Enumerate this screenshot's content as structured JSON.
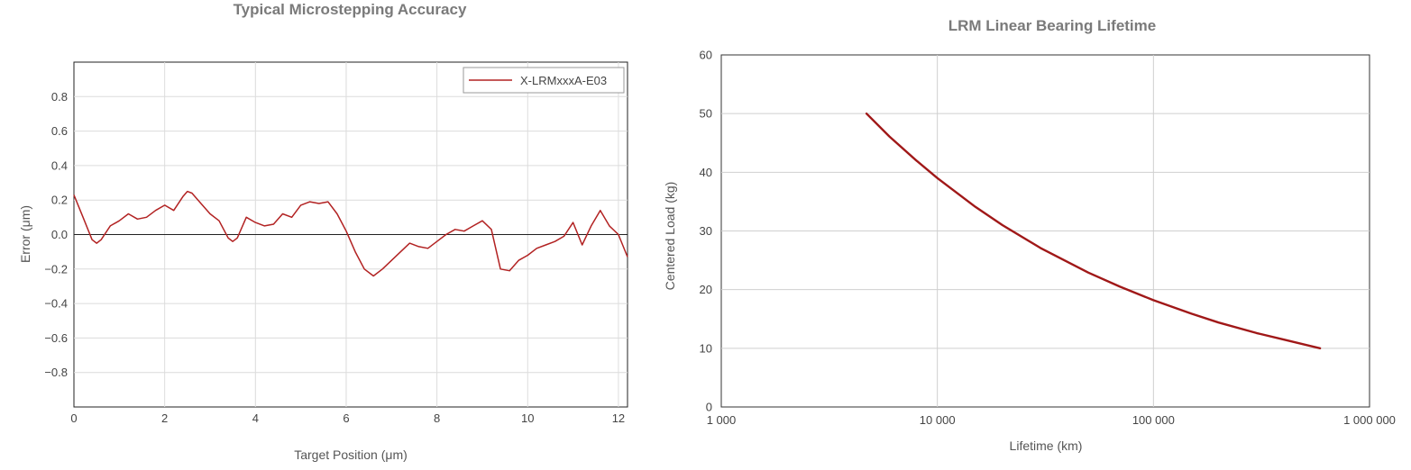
{
  "chart_data": [
    {
      "type": "line",
      "title": "Typical Microstepping Accuracy",
      "xlabel": "Target Position (μm)",
      "ylabel": "Error (μm)",
      "xlim": [
        0,
        12.2
      ],
      "ylim": [
        -1.0,
        1.0
      ],
      "x_ticks": [
        0,
        2,
        4,
        6,
        8,
        10,
        12
      ],
      "y_ticks": [
        -0.8,
        -0.6,
        -0.4,
        -0.2,
        0.0,
        0.2,
        0.4,
        0.6,
        0.8
      ],
      "y_tick_labels": [
        "−0.8",
        "−0.6",
        "−0.4",
        "−0.2",
        "0.0",
        "0.2",
        "0.4",
        "0.6",
        "0.8"
      ],
      "grid": true,
      "zero_line": true,
      "legend_position": "top-right",
      "series": [
        {
          "name": "X-LRMxxxA-E03",
          "color": "#b22222",
          "x": [
            0,
            0.2,
            0.4,
            0.5,
            0.6,
            0.8,
            1.0,
            1.2,
            1.4,
            1.6,
            1.8,
            2.0,
            2.2,
            2.4,
            2.5,
            2.6,
            2.8,
            3.0,
            3.2,
            3.4,
            3.5,
            3.6,
            3.8,
            4.0,
            4.2,
            4.4,
            4.6,
            4.8,
            5.0,
            5.2,
            5.4,
            5.6,
            5.8,
            6.0,
            6.2,
            6.4,
            6.6,
            6.8,
            7.0,
            7.2,
            7.4,
            7.6,
            7.8,
            8.0,
            8.2,
            8.4,
            8.6,
            8.8,
            9.0,
            9.2,
            9.4,
            9.6,
            9.8,
            10.0,
            10.2,
            10.4,
            10.6,
            10.8,
            11.0,
            11.2,
            11.4,
            11.6,
            11.8,
            12.0,
            12.2
          ],
          "values": [
            0.23,
            0.1,
            -0.03,
            -0.05,
            -0.03,
            0.05,
            0.08,
            0.12,
            0.09,
            0.1,
            0.14,
            0.17,
            0.14,
            0.22,
            0.25,
            0.24,
            0.18,
            0.12,
            0.08,
            -0.02,
            -0.04,
            -0.02,
            0.1,
            0.07,
            0.05,
            0.06,
            0.12,
            0.1,
            0.17,
            0.19,
            0.18,
            0.19,
            0.12,
            0.02,
            -0.1,
            -0.2,
            -0.24,
            -0.2,
            -0.15,
            -0.1,
            -0.05,
            -0.07,
            -0.08,
            -0.04,
            0.0,
            0.03,
            0.02,
            0.05,
            0.08,
            0.03,
            -0.2,
            -0.21,
            -0.15,
            -0.12,
            -0.08,
            -0.06,
            -0.04,
            -0.01,
            0.07,
            -0.06,
            0.05,
            0.14,
            0.05,
            0.0,
            -0.13
          ]
        }
      ]
    },
    {
      "type": "line",
      "title": "LRM Linear Bearing Lifetime",
      "xlabel": "Lifetime (km)",
      "ylabel": "Centered Load (kg)",
      "x_scale": "log",
      "xlim": [
        1000,
        1000000
      ],
      "ylim": [
        0,
        60
      ],
      "x_ticks": [
        1000,
        10000,
        100000,
        1000000
      ],
      "x_tick_labels": [
        "1 000",
        "10 000",
        "100 000",
        "1 000 000"
      ],
      "y_ticks": [
        0,
        10,
        20,
        30,
        40,
        50,
        60
      ],
      "grid": true,
      "series": [
        {
          "color": "#a01818",
          "x": [
            4700,
            6000,
            8000,
            10000,
            15000,
            20000,
            30000,
            50000,
            70000,
            100000,
            150000,
            200000,
            300000,
            400000,
            590000
          ],
          "values": [
            50,
            46.1,
            42,
            39,
            34.1,
            31,
            27.1,
            22.9,
            20.5,
            18.2,
            15.9,
            14.4,
            12.6,
            11.5,
            10
          ]
        }
      ]
    }
  ]
}
